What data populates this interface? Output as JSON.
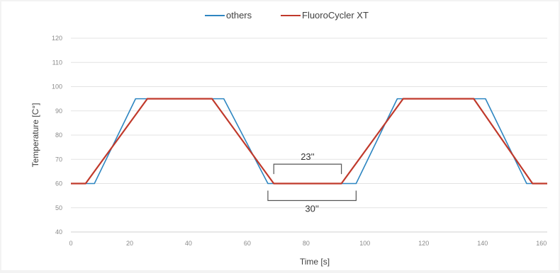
{
  "chart_data": {
    "type": "line",
    "xlabel": "Time [s]",
    "ylabel": "Temperature [C°]",
    "xlim": [
      0,
      162
    ],
    "ylim": [
      40,
      120
    ],
    "xticks": [
      0,
      20,
      40,
      60,
      80,
      100,
      120,
      140,
      160
    ],
    "yticks": [
      40,
      50,
      60,
      70,
      80,
      90,
      100,
      110,
      120
    ],
    "xtick_labels": [
      "0",
      "20",
      "40",
      "60",
      "80",
      "100",
      "120",
      "140",
      "160"
    ],
    "ytick_labels": [
      "40",
      "50",
      "60",
      "70",
      "80",
      "90",
      "100",
      "110",
      "120"
    ],
    "grid": "horizontal",
    "legend": "top",
    "series": [
      {
        "name": "others",
        "color": "#2e86c1",
        "x": [
          0,
          8,
          22,
          52,
          67,
          97,
          111,
          141,
          155,
          162
        ],
        "y": [
          60,
          60,
          95,
          95,
          60,
          60,
          95,
          95,
          60,
          60
        ]
      },
      {
        "name": "FluoroCycler XT",
        "color": "#c0392b",
        "x": [
          0,
          5,
          26,
          48,
          69,
          92,
          113,
          137,
          157,
          162
        ],
        "y": [
          60,
          60,
          95,
          95,
          60,
          60,
          95,
          95,
          60,
          60
        ]
      }
    ],
    "annotations": [
      {
        "label": "23''",
        "x_start": 69,
        "x_end": 92,
        "y": 68,
        "side": "top"
      },
      {
        "label": "30''",
        "x_start": 67,
        "x_end": 97,
        "y": 53,
        "side": "bottom"
      }
    ]
  }
}
